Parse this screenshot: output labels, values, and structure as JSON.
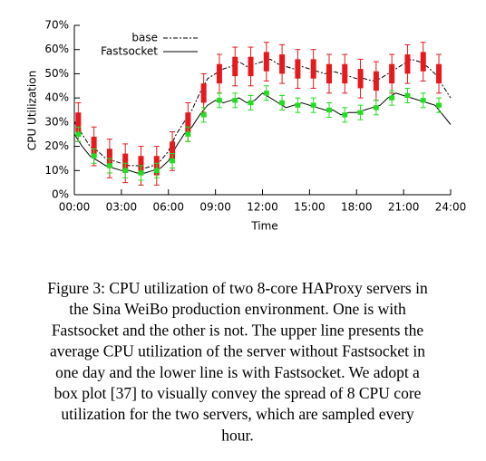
{
  "chart_data": {
    "type": "line",
    "xlabel": "Time",
    "ylabel": "CPU Utilization",
    "xlim": [
      0,
      24
    ],
    "ylim": [
      0,
      70
    ],
    "xticks": [
      {
        "value": 0,
        "label": "00:00"
      },
      {
        "value": 3,
        "label": "03:00"
      },
      {
        "value": 6,
        "label": "06:00"
      },
      {
        "value": 9,
        "label": "09:00"
      },
      {
        "value": 12,
        "label": "12:00"
      },
      {
        "value": 15,
        "label": "15:00"
      },
      {
        "value": 18,
        "label": "18:00"
      },
      {
        "value": 21,
        "label": "21:00"
      },
      {
        "value": 24,
        "label": "24:00"
      }
    ],
    "yticks": [
      {
        "value": 0,
        "label": "0%"
      },
      {
        "value": 10,
        "label": "10%"
      },
      {
        "value": 20,
        "label": "20%"
      },
      {
        "value": 30,
        "label": "30%"
      },
      {
        "value": 40,
        "label": "40%"
      },
      {
        "value": 50,
        "label": "50%"
      },
      {
        "value": 60,
        "label": "60%"
      },
      {
        "value": 70,
        "label": "70%"
      }
    ],
    "legend": "top-left",
    "x": [
      0,
      0.5,
      1,
      1.5,
      2,
      2.5,
      3,
      3.5,
      4,
      4.5,
      5,
      5.5,
      6,
      6.5,
      7,
      7.5,
      8,
      8.5,
      9,
      9.5,
      10,
      10.5,
      11,
      11.5,
      12,
      12.5,
      13,
      13.5,
      14,
      14.5,
      15,
      15.5,
      16,
      16.5,
      17,
      17.5,
      18,
      18.5,
      19,
      19.5,
      20,
      20.5,
      21,
      21.5,
      22,
      22.5,
      23,
      23.5,
      24
    ],
    "series": [
      {
        "name": "base",
        "color": "#000",
        "dash": true,
        "values": [
          30,
          25,
          20,
          18,
          15,
          14,
          13,
          12,
          12,
          11,
          12,
          14,
          18,
          25,
          30,
          35,
          42,
          48,
          50,
          52,
          53,
          55,
          53,
          54,
          55,
          56,
          54,
          53,
          52,
          53,
          52,
          51,
          50,
          51,
          50,
          49,
          48,
          48,
          47,
          48,
          50,
          52,
          54,
          56,
          55,
          53,
          50,
          45,
          40
        ]
      },
      {
        "name": "Fastsocket",
        "color": "#000",
        "dash": false,
        "values": [
          25,
          20,
          16,
          14,
          12,
          11,
          10,
          10,
          9,
          9,
          10,
          11,
          14,
          20,
          25,
          28,
          33,
          37,
          39,
          38,
          39,
          40,
          38,
          39,
          42,
          40,
          38,
          36,
          37,
          38,
          37,
          36,
          35,
          35,
          33,
          34,
          34,
          35,
          36,
          37,
          40,
          42,
          41,
          40,
          39,
          38,
          37,
          33,
          29
        ]
      }
    ],
    "boxes": [
      {
        "color": "#e8191c",
        "x": [
          0.25,
          1.25,
          2.25,
          3.25,
          4.25,
          5.25,
          6.25,
          7.25,
          8.25,
          9.25,
          10.25,
          11.25,
          12.25,
          13.25,
          14.25,
          15.25,
          16.25,
          17.25,
          18.25,
          19.25,
          20.25,
          21.25,
          22.25,
          23.25
        ],
        "low": [
          22,
          12,
          7,
          5,
          4,
          4,
          10,
          22,
          34,
          42,
          45,
          45,
          47,
          46,
          44,
          44,
          42,
          42,
          40,
          39,
          42,
          46,
          47,
          42
        ],
        "q1": [
          26,
          16,
          11,
          9,
          8,
          8,
          14,
          26,
          38,
          46,
          49,
          49,
          51,
          50,
          48,
          48,
          46,
          46,
          44,
          43,
          46,
          50,
          51,
          46
        ],
        "q3": [
          34,
          24,
          19,
          17,
          16,
          16,
          22,
          34,
          46,
          54,
          57,
          57,
          59,
          58,
          56,
          56,
          54,
          54,
          52,
          51,
          54,
          58,
          59,
          54
        ],
        "high": [
          38,
          28,
          23,
          21,
          20,
          20,
          26,
          38,
          50,
          58,
          61,
          61,
          63,
          62,
          60,
          60,
          58,
          58,
          56,
          55,
          58,
          62,
          63,
          58
        ]
      },
      {
        "color": "#22dd22",
        "x": [
          0.25,
          1.25,
          2.25,
          3.25,
          4.25,
          5.25,
          6.25,
          7.25,
          8.25,
          9.25,
          10.25,
          11.25,
          12.25,
          13.25,
          14.25,
          15.25,
          16.25,
          17.25,
          18.25,
          19.25,
          20.25,
          21.25,
          22.25,
          23.25
        ],
        "low": [
          22,
          13,
          9,
          7,
          6,
          7,
          11,
          22,
          30,
          36,
          36,
          35,
          39,
          35,
          34,
          34,
          32,
          30,
          31,
          33,
          37,
          38,
          36,
          34
        ],
        "q1": [
          24,
          15,
          11,
          9,
          8,
          9,
          13,
          24,
          32,
          38,
          38,
          37,
          41,
          37,
          36,
          36,
          34,
          32,
          33,
          35,
          39,
          40,
          38,
          36
        ],
        "q3": [
          26,
          17,
          13,
          11,
          10,
          11,
          15,
          26,
          34,
          40,
          40,
          39,
          43,
          39,
          38,
          38,
          36,
          34,
          35,
          37,
          41,
          42,
          40,
          38
        ],
        "high": [
          28,
          19,
          15,
          13,
          12,
          13,
          17,
          28,
          36,
          42,
          42,
          41,
          45,
          41,
          40,
          40,
          38,
          36,
          37,
          39,
          43,
          44,
          42,
          40
        ]
      }
    ]
  },
  "caption": [
    "Figure 3: CPU utilization of two 8-core HAProxy servers in",
    "the Sina WeiBo production environment. One is with",
    "Fastsocket and the other is not. The upper line presents the",
    "average CPU utilization of the server without Fastsocket in",
    "one day and the lower line is with Fastsocket. We adopt a",
    "box plot [37] to visually convey the spread of 8 CPU core",
    "utilization for the two servers, which are sampled every",
    "hour."
  ]
}
